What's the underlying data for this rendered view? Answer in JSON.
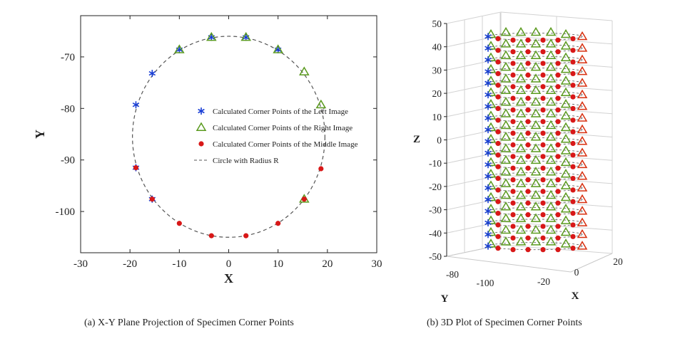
{
  "chart_data": [
    {
      "type": "scatter",
      "panel": "a",
      "caption": "(a) X-Y Plane Projection of Specimen Corner Points",
      "xlabel": "X",
      "ylabel": "Y",
      "xlim": [
        -30,
        30
      ],
      "ylim": [
        -108,
        -62
      ],
      "xticks": [
        -30,
        -20,
        -10,
        0,
        10,
        20,
        30
      ],
      "yticks": [
        -70,
        -80,
        -90,
        -100
      ],
      "circle": {
        "name": "Circle with Radius R",
        "cx": 0,
        "cy": -85.5,
        "r": 19.5
      },
      "series": [
        {
          "name": "Calculated Corner Points of the Left Image",
          "marker": "asterisk",
          "color": "#1a3fd6",
          "points": [
            [
              -18.8,
              -79.3
            ],
            [
              -15.5,
              -73.2
            ],
            [
              -10,
              -68.6
            ],
            [
              -3.5,
              -66.2
            ],
            [
              3.5,
              -66.2
            ],
            [
              10,
              -68.6
            ],
            [
              -18.8,
              -91.5
            ],
            [
              -15.5,
              -97.6
            ]
          ]
        },
        {
          "name": "Calculated Corner Points of the Right Image",
          "marker": "triangle",
          "color": "#5a9a1e",
          "points": [
            [
              -10,
              -68.6
            ],
            [
              -3.5,
              -66.2
            ],
            [
              3.5,
              -66.2
            ],
            [
              10,
              -68.6
            ],
            [
              15.3,
              -72.9
            ],
            [
              18.7,
              -79.3
            ],
            [
              15.3,
              -97.6
            ]
          ]
        },
        {
          "name": "Calculated Corner Points of the Middle Image",
          "marker": "dot",
          "color": "#d81818",
          "points": [
            [
              -18.8,
              -91.5
            ],
            [
              -15.5,
              -97.6
            ],
            [
              -10,
              -102.3
            ],
            [
              -3.5,
              -104.7
            ],
            [
              3.5,
              -104.7
            ],
            [
              10,
              -102.3
            ],
            [
              15.3,
              -97.6
            ],
            [
              18.7,
              -91.7
            ]
          ]
        }
      ]
    },
    {
      "type": "scatter3d",
      "panel": "b",
      "caption": "(b) 3D Plot of Specimen Corner Points",
      "xlabel": "X",
      "ylabel": "Y",
      "zlabel": "Z",
      "xlim": [
        -20,
        20
      ],
      "ylim": [
        -105,
        -65
      ],
      "zlim": [
        -50,
        50
      ],
      "xticks": [
        -20,
        0,
        20
      ],
      "yticks": [
        -100,
        -80
      ],
      "zticks": [
        50,
        40,
        30,
        20,
        10,
        0,
        -10,
        -20,
        -30,
        -40,
        -50
      ],
      "layer_z": [
        45,
        40,
        35,
        30,
        25,
        20,
        15,
        10,
        5,
        0,
        -5,
        -10,
        -15,
        -20,
        -25,
        -30,
        -35,
        -40,
        -45
      ]
    }
  ]
}
